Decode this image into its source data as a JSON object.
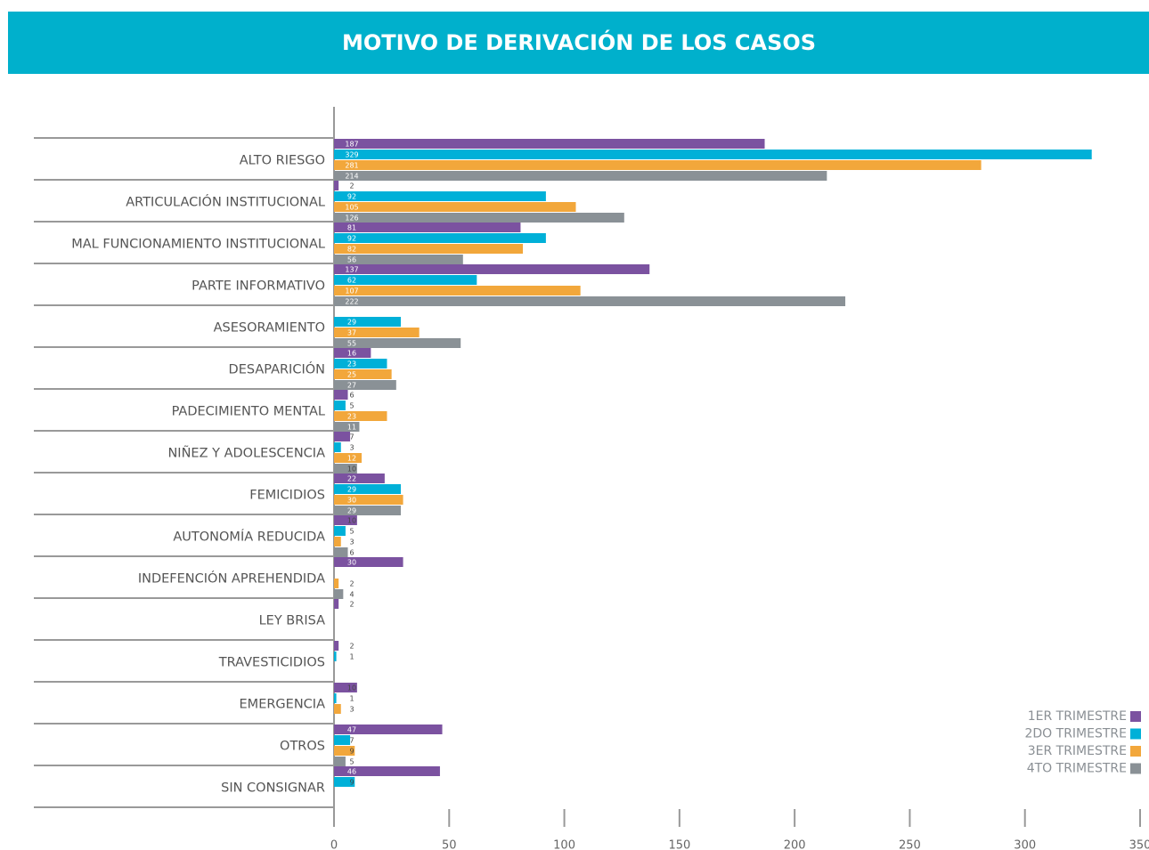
{
  "chart_data": {
    "type": "bar",
    "orientation": "horizontal",
    "title": "MOTIVO DE DERIVACIÓN DE LOS CASOS",
    "categories": [
      "ALTO RIESGO",
      "ARTICULACIÓN INSTITUCIONAL",
      "MAL FUNCIONAMIENTO INSTITUCIONAL",
      "PARTE INFORMATIVO",
      "ASESORAMIENTO",
      "DESAPARICIÓN",
      "PADECIMIENTO MENTAL",
      "NIÑEZ Y ADOLESCENCIA",
      "FEMICIDIOS",
      "AUTONOMÍA REDUCIDA",
      "INDEFENCIÓN APREHENDIDA",
      "LEY BRISA",
      "TRAVESTICIDIOS",
      "EMERGENCIA",
      "OTROS",
      "SIN CONSIGNAR"
    ],
    "series": [
      {
        "name": "1ER TRIMESTRE",
        "color": "#7b52a0",
        "values": [
          187,
          2,
          81,
          137,
          null,
          16,
          6,
          7,
          22,
          10,
          30,
          2,
          2,
          10,
          47,
          46
        ]
      },
      {
        "name": "2DO TRIMESTRE",
        "color": "#00b0d8",
        "values": [
          329,
          92,
          92,
          62,
          29,
          23,
          5,
          3,
          29,
          5,
          null,
          null,
          1,
          1,
          7,
          9
        ]
      },
      {
        "name": "3ER TRIMESTRE",
        "color": "#f2a73b",
        "values": [
          281,
          105,
          82,
          107,
          37,
          25,
          23,
          12,
          30,
          3,
          2,
          null,
          null,
          3,
          9,
          null
        ]
      },
      {
        "name": "4TO TRIMESTRE",
        "color": "#8a9196",
        "values": [
          214,
          126,
          56,
          222,
          55,
          27,
          11,
          10,
          29,
          6,
          4,
          null,
          null,
          null,
          5,
          null
        ]
      }
    ],
    "xlim": [
      0,
      350
    ],
    "xticks": [
      0,
      50,
      100,
      150,
      200,
      250,
      300,
      350
    ],
    "legend": "bottom-right"
  }
}
